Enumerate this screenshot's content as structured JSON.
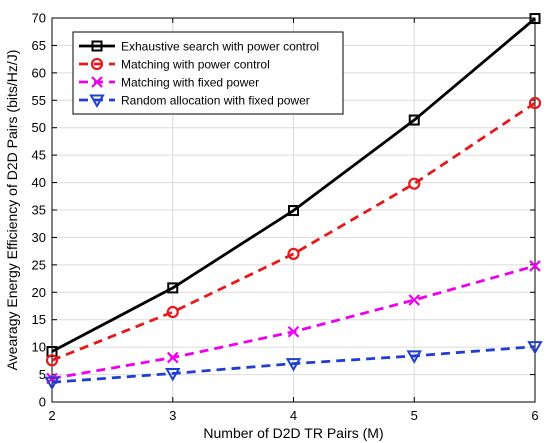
{
  "chart_data": {
    "type": "line",
    "title": "",
    "xlabel": "Number of D2D TR Pairs (M)",
    "ylabel": "Avearagy Energy Efficiency of D2D Pairs (bits/Hz/J)",
    "x": [
      2,
      3,
      4,
      5,
      6
    ],
    "xlim": [
      2,
      6
    ],
    "ylim": [
      0,
      70
    ],
    "xticks": [
      "2",
      "3",
      "4",
      "5",
      "6"
    ],
    "yticks": [
      "0",
      "5",
      "10",
      "15",
      "20",
      "25",
      "30",
      "35",
      "40",
      "45",
      "50",
      "55",
      "60",
      "65",
      "70"
    ],
    "grid": true,
    "legend_position": "top-left",
    "series": [
      {
        "name": "Exhaustive search with power control",
        "values": [
          9.2,
          20.8,
          34.9,
          51.4,
          69.9
        ],
        "color": "#000000",
        "dash": "solid",
        "marker": "square"
      },
      {
        "name": "Matching with power control",
        "values": [
          7.6,
          16.4,
          27.0,
          39.8,
          54.5
        ],
        "color": "#e41a1c",
        "dash": "dashed",
        "marker": "circle"
      },
      {
        "name": "Matching with fixed power",
        "values": [
          4.3,
          8.1,
          12.8,
          18.6,
          24.8
        ],
        "color": "#ee00ee",
        "dash": "dashed",
        "marker": "x"
      },
      {
        "name": "Random allocation with fixed power",
        "values": [
          3.6,
          5.2,
          7.0,
          8.4,
          10.1
        ],
        "color": "#1f3fd0",
        "dash": "dashed",
        "marker": "triangle-down"
      }
    ]
  }
}
